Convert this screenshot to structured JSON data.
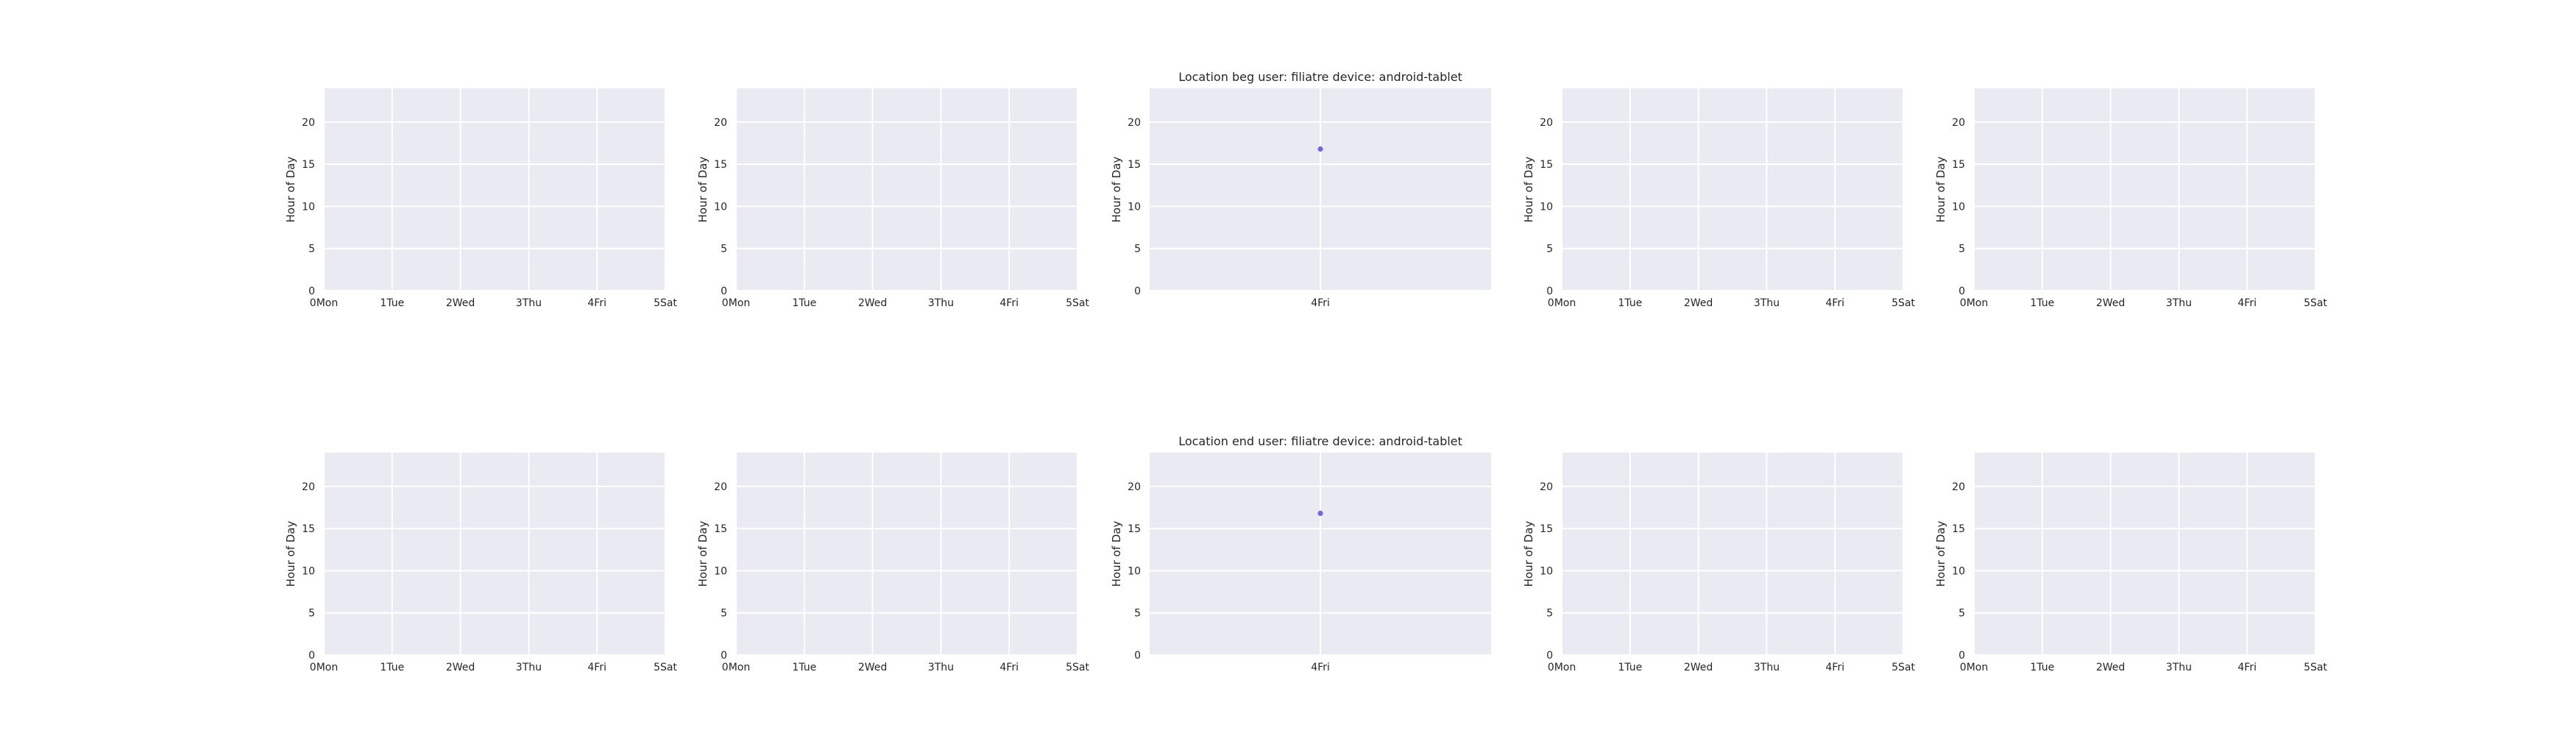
{
  "chart_data": [
    {
      "type": "scatter",
      "title": "",
      "ylabel": "Hour of Day",
      "xlabel": "",
      "x_ticks": [
        0,
        1,
        2,
        3,
        4,
        5
      ],
      "x_tick_labels": [
        "0Mon",
        "1Tue",
        "2Wed",
        "3Thu",
        "4Fri",
        "5Sat"
      ],
      "xlim": [
        0,
        5
      ],
      "y_ticks": [
        0,
        5,
        10,
        15,
        20
      ],
      "y_tick_labels": [
        "0",
        "5",
        "10",
        "15",
        "20"
      ],
      "ylim": [
        0,
        24
      ],
      "grid": true,
      "points": []
    },
    {
      "type": "scatter",
      "title": "",
      "ylabel": "Hour of Day",
      "xlabel": "",
      "x_ticks": [
        0,
        1,
        2,
        3,
        4,
        5
      ],
      "x_tick_labels": [
        "0Mon",
        "1Tue",
        "2Wed",
        "3Thu",
        "4Fri",
        "5Sat"
      ],
      "xlim": [
        0,
        5
      ],
      "y_ticks": [
        0,
        5,
        10,
        15,
        20
      ],
      "y_tick_labels": [
        "0",
        "5",
        "10",
        "15",
        "20"
      ],
      "ylim": [
        0,
        24
      ],
      "grid": true,
      "points": []
    },
    {
      "type": "scatter",
      "title": "Location beg user: filiatre device: android-tablet",
      "ylabel": "Hour of Day",
      "xlabel": "",
      "x_ticks": [
        4
      ],
      "x_tick_labels": [
        "4Fri"
      ],
      "xlim": [
        3.5,
        4.5
      ],
      "y_ticks": [
        0,
        5,
        10,
        15,
        20
      ],
      "y_tick_labels": [
        "0",
        "5",
        "10",
        "15",
        "20"
      ],
      "ylim": [
        0,
        24
      ],
      "grid": true,
      "points": [
        {
          "x": 4,
          "y": 16.8
        }
      ]
    },
    {
      "type": "scatter",
      "title": "",
      "ylabel": "Hour of Day",
      "xlabel": "",
      "x_ticks": [
        0,
        1,
        2,
        3,
        4,
        5
      ],
      "x_tick_labels": [
        "0Mon",
        "1Tue",
        "2Wed",
        "3Thu",
        "4Fri",
        "5Sat"
      ],
      "xlim": [
        0,
        5
      ],
      "y_ticks": [
        0,
        5,
        10,
        15,
        20
      ],
      "y_tick_labels": [
        "0",
        "5",
        "10",
        "15",
        "20"
      ],
      "ylim": [
        0,
        24
      ],
      "grid": true,
      "points": []
    },
    {
      "type": "scatter",
      "title": "",
      "ylabel": "Hour of Day",
      "xlabel": "",
      "x_ticks": [
        0,
        1,
        2,
        3,
        4,
        5
      ],
      "x_tick_labels": [
        "0Mon",
        "1Tue",
        "2Wed",
        "3Thu",
        "4Fri",
        "5Sat"
      ],
      "xlim": [
        0,
        5
      ],
      "y_ticks": [
        0,
        5,
        10,
        15,
        20
      ],
      "y_tick_labels": [
        "0",
        "5",
        "10",
        "15",
        "20"
      ],
      "ylim": [
        0,
        24
      ],
      "grid": true,
      "points": []
    },
    {
      "type": "scatter",
      "title": "",
      "ylabel": "Hour of Day",
      "xlabel": "",
      "x_ticks": [
        0,
        1,
        2,
        3,
        4,
        5
      ],
      "x_tick_labels": [
        "0Mon",
        "1Tue",
        "2Wed",
        "3Thu",
        "4Fri",
        "5Sat"
      ],
      "xlim": [
        0,
        5
      ],
      "y_ticks": [
        0,
        5,
        10,
        15,
        20
      ],
      "y_tick_labels": [
        "0",
        "5",
        "10",
        "15",
        "20"
      ],
      "ylim": [
        0,
        24
      ],
      "grid": true,
      "points": []
    },
    {
      "type": "scatter",
      "title": "",
      "ylabel": "Hour of Day",
      "xlabel": "",
      "x_ticks": [
        0,
        1,
        2,
        3,
        4,
        5
      ],
      "x_tick_labels": [
        "0Mon",
        "1Tue",
        "2Wed",
        "3Thu",
        "4Fri",
        "5Sat"
      ],
      "xlim": [
        0,
        5
      ],
      "y_ticks": [
        0,
        5,
        10,
        15,
        20
      ],
      "y_tick_labels": [
        "0",
        "5",
        "10",
        "15",
        "20"
      ],
      "ylim": [
        0,
        24
      ],
      "grid": true,
      "points": []
    },
    {
      "type": "scatter",
      "title": "Location end user: filiatre device: android-tablet",
      "ylabel": "Hour of Day",
      "xlabel": "",
      "x_ticks": [
        4
      ],
      "x_tick_labels": [
        "4Fri"
      ],
      "xlim": [
        3.5,
        4.5
      ],
      "y_ticks": [
        0,
        5,
        10,
        15,
        20
      ],
      "y_tick_labels": [
        "0",
        "5",
        "10",
        "15",
        "20"
      ],
      "ylim": [
        0,
        24
      ],
      "grid": true,
      "points": [
        {
          "x": 4,
          "y": 16.8
        }
      ]
    },
    {
      "type": "scatter",
      "title": "",
      "ylabel": "Hour of Day",
      "xlabel": "",
      "x_ticks": [
        0,
        1,
        2,
        3,
        4,
        5
      ],
      "x_tick_labels": [
        "0Mon",
        "1Tue",
        "2Wed",
        "3Thu",
        "4Fri",
        "5Sat"
      ],
      "xlim": [
        0,
        5
      ],
      "y_ticks": [
        0,
        5,
        10,
        15,
        20
      ],
      "y_tick_labels": [
        "0",
        "5",
        "10",
        "15",
        "20"
      ],
      "ylim": [
        0,
        24
      ],
      "grid": true,
      "points": []
    },
    {
      "type": "scatter",
      "title": "",
      "ylabel": "Hour of Day",
      "xlabel": "",
      "x_ticks": [
        0,
        1,
        2,
        3,
        4,
        5
      ],
      "x_tick_labels": [
        "0Mon",
        "1Tue",
        "2Wed",
        "3Thu",
        "4Fri",
        "5Sat"
      ],
      "xlim": [
        0,
        5
      ],
      "y_ticks": [
        0,
        5,
        10,
        15,
        20
      ],
      "y_tick_labels": [
        "0",
        "5",
        "10",
        "15",
        "20"
      ],
      "ylim": [
        0,
        24
      ],
      "grid": true,
      "points": []
    }
  ],
  "colors": {
    "plot_background": "#eaeaf2",
    "grid": "#ffffff",
    "point": "#6a6ae6",
    "text": "#262626"
  }
}
